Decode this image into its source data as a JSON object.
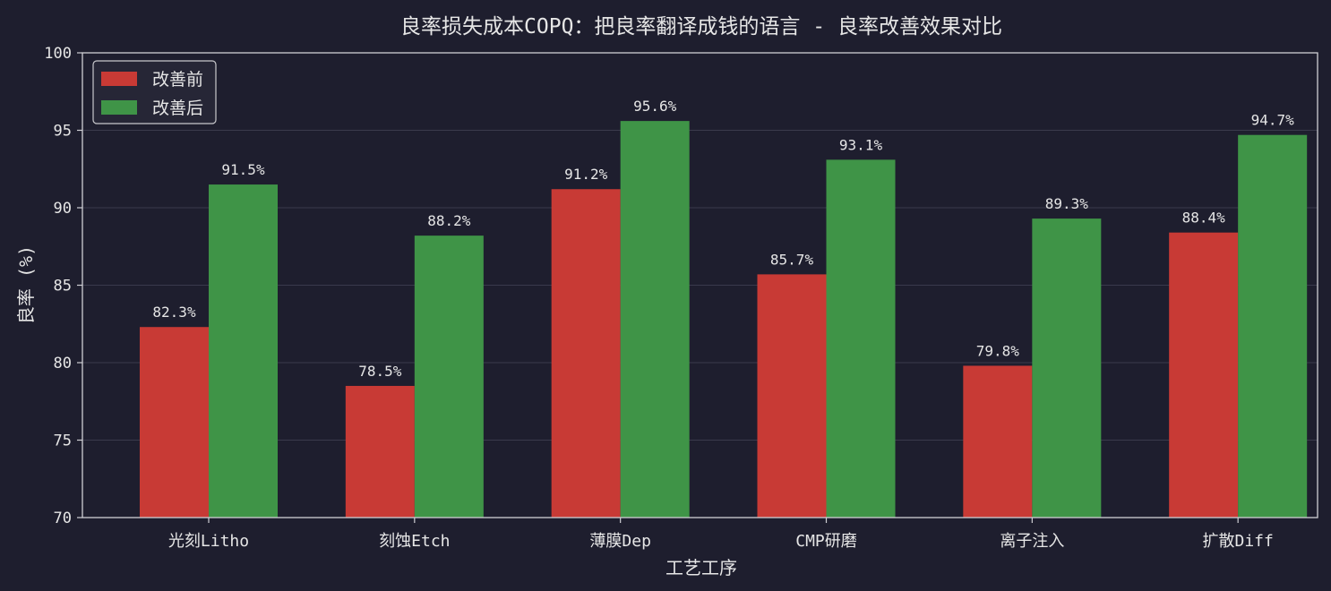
{
  "chart_data": {
    "type": "bar",
    "title": "良率损失成本COPQ：把良率翻译成钱的语言 - 良率改善效果对比",
    "xlabel": "工艺工序",
    "ylabel": "良率 (%)",
    "ylim": [
      70,
      100
    ],
    "yticks": [
      70,
      75,
      80,
      85,
      90,
      95,
      100
    ],
    "grid": true,
    "legend_position": "top-left",
    "categories": [
      "光刻Litho",
      "刻蚀Etch",
      "薄膜Dep",
      "CMP研磨",
      "离子注入",
      "扩散Diff"
    ],
    "series": [
      {
        "name": "改善前",
        "color": "#c83a35",
        "values": [
          82.3,
          78.5,
          91.2,
          85.7,
          79.8,
          88.4
        ],
        "labels": [
          "82.3%",
          "78.5%",
          "91.2%",
          "85.7%",
          "79.8%",
          "88.4%"
        ]
      },
      {
        "name": "改善后",
        "color": "#3f9447",
        "values": [
          91.5,
          88.2,
          95.6,
          93.1,
          89.3,
          94.7
        ],
        "labels": [
          "91.5%",
          "88.2%",
          "95.6%",
          "93.1%",
          "89.3%",
          "94.7%"
        ]
      }
    ]
  }
}
